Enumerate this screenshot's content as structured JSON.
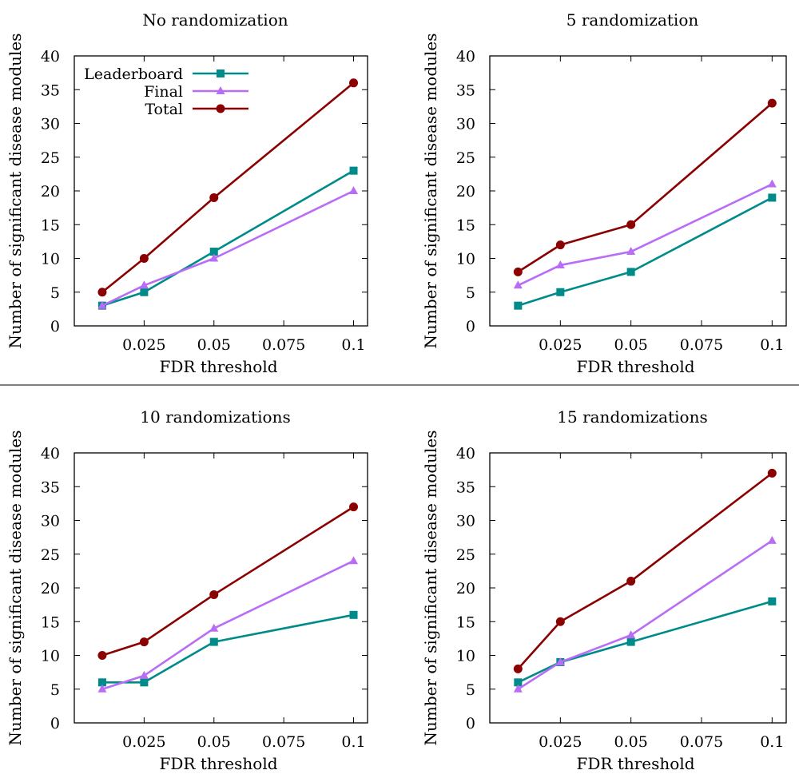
{
  "chart_data": [
    {
      "type": "line",
      "title": "No randomization",
      "xlabel": "FDR threshold",
      "ylabel": "Number of significant disease modules",
      "xlim": [
        0,
        0.105
      ],
      "ylim": [
        0,
        40
      ],
      "x_ticks": [
        "0.025",
        "0.05",
        "0.075",
        "0.1"
      ],
      "y_ticks": [
        "0",
        "5",
        "10",
        "15",
        "20",
        "25",
        "30",
        "35",
        "40"
      ],
      "grid": false,
      "legend_position": "top-left",
      "x": [
        0.01,
        0.025,
        0.05,
        0.1
      ],
      "series": [
        {
          "name": "Leaderboard",
          "values": [
            3,
            5,
            11,
            23
          ]
        },
        {
          "name": "Final",
          "values": [
            3,
            6,
            10,
            20
          ]
        },
        {
          "name": "Total",
          "values": [
            5,
            10,
            19,
            36
          ]
        }
      ]
    },
    {
      "type": "line",
      "title": "5 randomization",
      "xlabel": "FDR threshold",
      "ylabel": "Number of significant disease modules",
      "xlim": [
        0,
        0.105
      ],
      "ylim": [
        0,
        40
      ],
      "x_ticks": [
        "0.025",
        "0.05",
        "0.075",
        "0.1"
      ],
      "y_ticks": [
        "0",
        "5",
        "10",
        "15",
        "20",
        "25",
        "30",
        "35",
        "40"
      ],
      "grid": false,
      "x": [
        0.01,
        0.025,
        0.05,
        0.1
      ],
      "series": [
        {
          "name": "Leaderboard",
          "values": [
            3,
            5,
            8,
            19
          ]
        },
        {
          "name": "Final",
          "values": [
            6,
            9,
            11,
            21
          ]
        },
        {
          "name": "Total",
          "values": [
            8,
            12,
            15,
            33
          ]
        }
      ]
    },
    {
      "type": "line",
      "title": "10 randomizations",
      "xlabel": "FDR threshold",
      "ylabel": "Number of significant disease modules",
      "xlim": [
        0,
        0.105
      ],
      "ylim": [
        0,
        40
      ],
      "x_ticks": [
        "0.025",
        "0.05",
        "0.075",
        "0.1"
      ],
      "y_ticks": [
        "0",
        "5",
        "10",
        "15",
        "20",
        "25",
        "30",
        "35",
        "40"
      ],
      "grid": false,
      "x": [
        0.01,
        0.025,
        0.05,
        0.1
      ],
      "series": [
        {
          "name": "Leaderboard",
          "values": [
            6,
            6,
            12,
            16
          ]
        },
        {
          "name": "Final",
          "values": [
            5,
            7,
            14,
            24
          ]
        },
        {
          "name": "Total",
          "values": [
            10,
            12,
            19,
            32
          ]
        }
      ]
    },
    {
      "type": "line",
      "title": "15 randomizations",
      "xlabel": "FDR threshold",
      "ylabel": "Number of significant disease modules",
      "xlim": [
        0,
        0.105
      ],
      "ylim": [
        0,
        40
      ],
      "x_ticks": [
        "0.025",
        "0.05",
        "0.075",
        "0.1"
      ],
      "y_ticks": [
        "0",
        "5",
        "10",
        "15",
        "20",
        "25",
        "30",
        "35",
        "40"
      ],
      "grid": false,
      "x": [
        0.01,
        0.025,
        0.05,
        0.1
      ],
      "series": [
        {
          "name": "Leaderboard",
          "values": [
            6,
            9,
            12,
            18
          ]
        },
        {
          "name": "Final",
          "values": [
            5,
            9,
            13,
            27
          ]
        },
        {
          "name": "Total",
          "values": [
            8,
            15,
            21,
            37
          ]
        }
      ]
    }
  ],
  "series_styles": {
    "Leaderboard": {
      "color": "#008b8b",
      "marker": "square"
    },
    "Final": {
      "color": "#b96cf5",
      "marker": "triangle"
    },
    "Total": {
      "color": "#8b0000",
      "marker": "circle"
    }
  }
}
